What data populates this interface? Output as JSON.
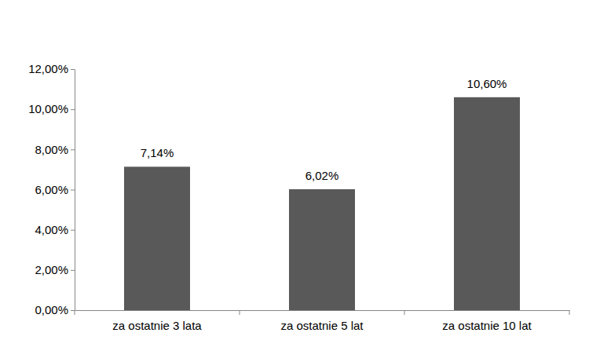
{
  "chart_data": {
    "type": "bar",
    "categories": [
      "za ostatnie 3 lata",
      "za ostatnie 5 lat",
      "za ostatnie 10 lat"
    ],
    "values": [
      7.14,
      6.02,
      10.6
    ],
    "value_labels": [
      "7,14%",
      "6,02%",
      "10,60%"
    ],
    "color": "#595959",
    "ylim": [
      0,
      12
    ],
    "yticks": [
      {
        "value": 0,
        "label": "0,00%"
      },
      {
        "value": 2,
        "label": "2,00%"
      },
      {
        "value": 4,
        "label": "4,00%"
      },
      {
        "value": 6,
        "label": "6,00%"
      },
      {
        "value": 8,
        "label": "8,00%"
      },
      {
        "value": 10,
        "label": "10,00%"
      },
      {
        "value": 12,
        "label": "12,00%"
      }
    ],
    "grid": false,
    "data_labels": true
  }
}
